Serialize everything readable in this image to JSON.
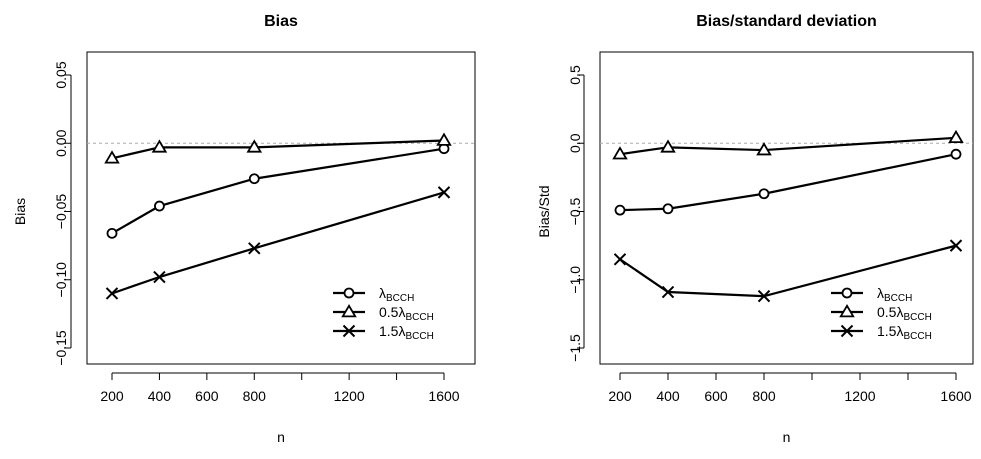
{
  "chart_data": [
    {
      "type": "line",
      "title": "Bias",
      "xlabel": "n",
      "ylabel": "Bias",
      "x": [
        200,
        400,
        800,
        1600
      ],
      "xticks": [
        200,
        400,
        600,
        800,
        1000,
        1200,
        1400,
        1600
      ],
      "xtick_labels": [
        "200",
        "400",
        "600",
        "800",
        "",
        "1200",
        "",
        "1600"
      ],
      "yticks": [
        -0.15,
        -0.1,
        -0.05,
        0.0,
        0.05
      ],
      "ytick_labels": [
        "−0.15",
        "−0.10",
        "−0.05",
        "0.00",
        "0.05"
      ],
      "xlim": [
        200,
        1600
      ],
      "ylim": [
        -0.15,
        0.05
      ],
      "reference_line": 0,
      "legend_position": "bottom-right",
      "series": [
        {
          "name": "λ",
          "name_sub": "BCCH",
          "marker": "circle",
          "values": [
            -0.066,
            -0.046,
            -0.026,
            -0.004
          ]
        },
        {
          "name": "0.5λ",
          "name_sub": "BCCH",
          "marker": "triangle",
          "values": [
            -0.011,
            -0.003,
            -0.003,
            0.002
          ]
        },
        {
          "name": "1.5λ",
          "name_sub": "BCCH",
          "marker": "cross",
          "values": [
            -0.11,
            -0.098,
            -0.077,
            -0.036
          ]
        }
      ]
    },
    {
      "type": "line",
      "title": "Bias/standard deviation",
      "xlabel": "n",
      "ylabel": "Bias/Std",
      "x": [
        200,
        400,
        800,
        1600
      ],
      "xticks": [
        200,
        400,
        600,
        800,
        1000,
        1200,
        1400,
        1600
      ],
      "xtick_labels": [
        "200",
        "400",
        "600",
        "800",
        "",
        "1200",
        "",
        "1600"
      ],
      "yticks": [
        -1.5,
        -1.0,
        -0.5,
        0.0,
        0.5
      ],
      "ytick_labels": [
        "−1.5",
        "−1.0",
        "−0.5",
        "0.0",
        "0.5"
      ],
      "xlim": [
        200,
        1600
      ],
      "ylim": [
        -1.5,
        0.5
      ],
      "reference_line": 0,
      "legend_position": "bottom-right",
      "series": [
        {
          "name": "λ",
          "name_sub": "BCCH",
          "marker": "circle",
          "values": [
            -0.49,
            -0.48,
            -0.37,
            -0.08
          ]
        },
        {
          "name": "0.5λ",
          "name_sub": "BCCH",
          "marker": "triangle",
          "values": [
            -0.08,
            -0.03,
            -0.05,
            0.04
          ]
        },
        {
          "name": "1.5λ",
          "name_sub": "BCCH",
          "marker": "cross",
          "values": [
            -0.85,
            -1.09,
            -1.12,
            -0.75
          ]
        }
      ]
    }
  ]
}
